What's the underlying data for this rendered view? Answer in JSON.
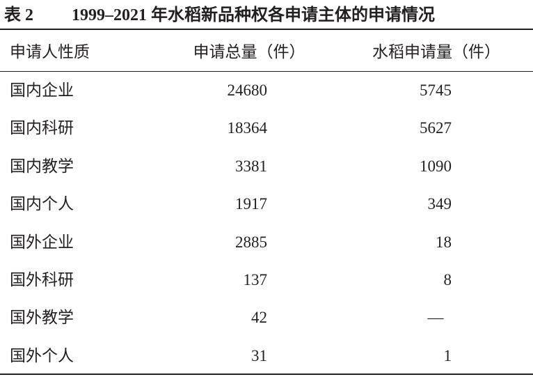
{
  "title": {
    "label": "表 2",
    "text": "1999–2021 年水稻新品种权各申请主体的申请情况"
  },
  "table": {
    "header": [
      "申请人性质",
      "申请总量（件）",
      "水稻申请量（件）"
    ],
    "rows": [
      [
        "国内企业",
        24680,
        5745
      ],
      [
        "国内科研",
        18364,
        5627
      ],
      [
        "国内教学",
        3381,
        1090
      ],
      [
        "国内个人",
        1917,
        349
      ],
      [
        "国外企业",
        2885,
        18
      ],
      [
        "国外科研",
        137,
        8
      ],
      [
        "国外教学",
        42,
        "—"
      ],
      [
        "国外个人",
        31,
        1
      ]
    ]
  }
}
